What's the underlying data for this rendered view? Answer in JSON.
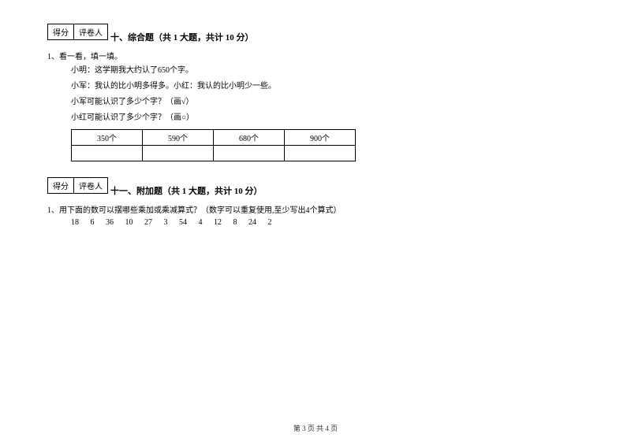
{
  "section10": {
    "scoreLabel1": "得分",
    "scoreLabel2": "评卷人",
    "title": "十、综合题（共 1 大题，共计 10 分）",
    "q1": "1、看一看，填一填。",
    "line1": "小明：这学期我大约认了650个字。",
    "line2": "小军：我认的比小明多得多。小红：我认的比小明少一些。",
    "line3": "小军可能认识了多少个字？（画√）",
    "line4": "小红可能认识了多少个字？（画○）",
    "tableRow": [
      "350个",
      "590个",
      "680个",
      "900个"
    ]
  },
  "section11": {
    "scoreLabel1": "得分",
    "scoreLabel2": "评卷人",
    "title": "十一、附加题（共 1 大题，共计 10 分）",
    "q1": "1、用下面的数可以摆哪些乘加或乘减算式？（数字可以重复使用,至少写出4个算式）",
    "numbers": "18 6 36 10 27 3 54 4 12 8 24 2"
  },
  "footer": "第 3 页 共 4 页"
}
